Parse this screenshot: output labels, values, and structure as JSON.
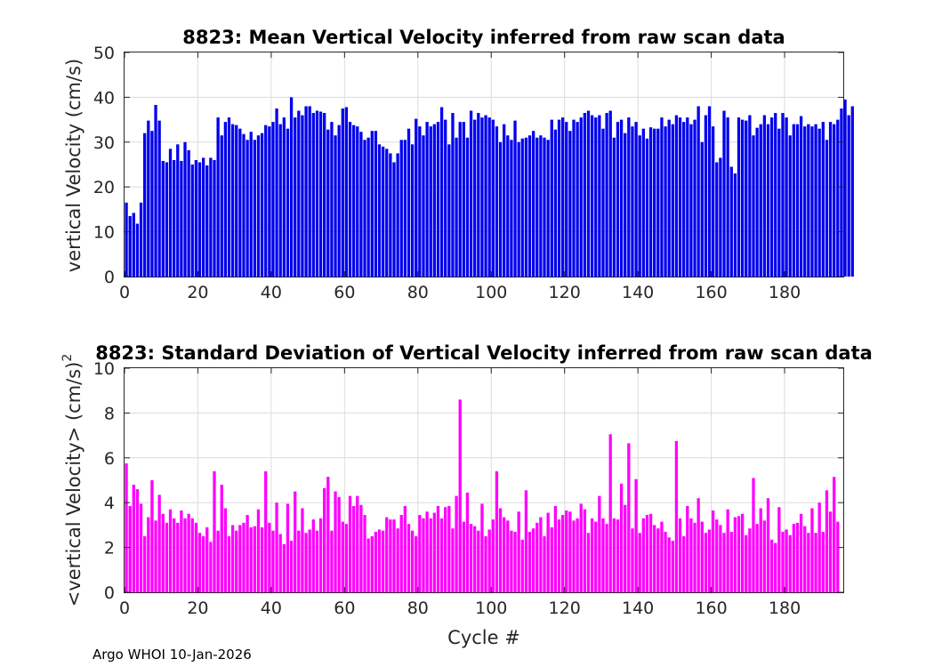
{
  "footer": "Argo WHOI 10-Jan-2026",
  "chart_data": [
    {
      "type": "bar",
      "title": "8823: Mean Vertical Velocity inferred from raw scan data",
      "xlabel": "",
      "ylabel": "vertical Velocity (cm/s)",
      "xlim": [
        0,
        196
      ],
      "ylim": [
        0,
        50
      ],
      "xticks": [
        0,
        20,
        40,
        60,
        80,
        100,
        120,
        140,
        160,
        180
      ],
      "yticks": [
        0,
        10,
        20,
        30,
        40,
        50
      ],
      "grid": true,
      "color": "#0000ee",
      "x_start": 0,
      "values": [
        16.5,
        13.5,
        14.2,
        11.8,
        16.5,
        32.0,
        34.8,
        32.5,
        38.3,
        34.8,
        25.8,
        25.5,
        28.5,
        26.0,
        29.5,
        25.8,
        30.0,
        28.2,
        25.0,
        26.0,
        25.5,
        26.5,
        24.8,
        26.5,
        26.0,
        35.5,
        31.5,
        34.5,
        35.5,
        34.0,
        33.8,
        33.0,
        31.8,
        30.5,
        32.3,
        30.5,
        31.5,
        32.0,
        33.8,
        33.5,
        34.5,
        37.5,
        34.0,
        35.5,
        33.0,
        40.0,
        35.5,
        37.0,
        36.0,
        38.0,
        38.0,
        36.5,
        37.0,
        36.8,
        36.5,
        32.8,
        34.5,
        31.5,
        33.8,
        37.5,
        37.8,
        34.5,
        33.8,
        33.5,
        32.3,
        30.5,
        31.0,
        32.5,
        32.5,
        29.5,
        29.0,
        28.5,
        27.5,
        25.5,
        27.5,
        30.5,
        30.5,
        33.0,
        29.5,
        35.2,
        33.5,
        31.5,
        34.5,
        33.5,
        34.0,
        34.5,
        37.8,
        35.0,
        29.5,
        36.5,
        31.0,
        34.5,
        34.5,
        31.0,
        37.0,
        35.0,
        36.5,
        35.5,
        36.0,
        35.5,
        35.0,
        33.5,
        30.0,
        34.0,
        31.5,
        30.5,
        34.8,
        30.0,
        30.8,
        31.0,
        31.5,
        32.5,
        31.0,
        31.5,
        31.0,
        30.5,
        35.0,
        32.8,
        35.0,
        35.5,
        34.5,
        32.5,
        35.0,
        34.5,
        35.5,
        36.5,
        37.0,
        36.0,
        35.5,
        36.0,
        33.0,
        36.5,
        37.0,
        31.0,
        34.5,
        35.0,
        32.0,
        35.5,
        33.5,
        34.5,
        31.5,
        33.0,
        30.8,
        33.3,
        33.0,
        33.0,
        35.5,
        33.5,
        35.0,
        34.0,
        36.0,
        35.5,
        34.5,
        35.5,
        34.0,
        35.0,
        38.0,
        30.0,
        36.0,
        38.0,
        33.5,
        25.5,
        26.5,
        37.0,
        35.5,
        24.5,
        23.0,
        35.5,
        35.0,
        34.8,
        36.0,
        31.5,
        33.2,
        34.0,
        36.0,
        34.0,
        35.5,
        36.5,
        33.0,
        36.5,
        35.5,
        31.5,
        34.0,
        34.0,
        35.8,
        33.5,
        34.0,
        33.5,
        34.0,
        33.0,
        34.5,
        30.5,
        34.5,
        34.0,
        35.0,
        37.5,
        39.5,
        36.0,
        38.0
      ]
    },
    {
      "type": "bar",
      "title": "8823: Standard Deviation of Vertical Velocity inferred from raw scan data",
      "xlabel": "Cycle #",
      "ylabel": "<vertical Velocity> (cm/s)",
      "ylabel_superscript": "2",
      "xlim": [
        0,
        196
      ],
      "ylim": [
        0,
        10
      ],
      "xticks": [
        0,
        20,
        40,
        60,
        80,
        100,
        120,
        140,
        160,
        180
      ],
      "yticks": [
        0,
        2,
        4,
        6,
        8,
        10
      ],
      "grid": true,
      "color": "#ff00ff",
      "x_start": 0,
      "values": [
        5.75,
        3.85,
        4.8,
        4.6,
        3.95,
        2.5,
        3.35,
        5.0,
        3.2,
        4.35,
        3.5,
        3.1,
        3.7,
        3.3,
        3.1,
        3.65,
        3.3,
        3.5,
        3.3,
        3.1,
        2.65,
        2.5,
        2.9,
        2.25,
        5.4,
        2.75,
        4.8,
        3.75,
        2.5,
        3.0,
        2.75,
        3.0,
        3.1,
        3.45,
        2.9,
        2.95,
        3.7,
        2.9,
        5.4,
        3.1,
        2.75,
        4.0,
        2.6,
        2.15,
        3.95,
        2.3,
        4.5,
        2.75,
        3.75,
        2.65,
        2.8,
        3.25,
        2.75,
        3.3,
        4.65,
        5.15,
        2.75,
        4.5,
        4.25,
        3.15,
        3.05,
        4.3,
        3.85,
        4.3,
        3.9,
        3.45,
        2.4,
        2.5,
        2.7,
        2.8,
        2.75,
        3.35,
        3.25,
        3.25,
        2.85,
        3.45,
        3.85,
        3.05,
        2.75,
        2.5,
        3.45,
        3.3,
        3.6,
        3.3,
        3.55,
        3.85,
        3.3,
        3.8,
        3.85,
        2.85,
        4.3,
        8.6,
        3.15,
        4.45,
        3.05,
        2.95,
        2.75,
        3.95,
        2.5,
        2.8,
        3.25,
        5.4,
        3.75,
        3.35,
        3.2,
        2.75,
        2.7,
        3.6,
        2.35,
        4.55,
        2.7,
        2.85,
        3.1,
        3.35,
        2.5,
        3.55,
        2.9,
        3.85,
        3.25,
        3.45,
        3.65,
        3.6,
        3.2,
        3.3,
        3.95,
        3.7,
        2.65,
        3.3,
        3.15,
        4.3,
        3.3,
        3.05,
        7.05,
        3.3,
        3.25,
        4.85,
        3.9,
        6.65,
        2.85,
        5.05,
        2.65,
        3.3,
        3.45,
        3.5,
        3.0,
        2.85,
        3.15,
        2.7,
        2.45,
        2.3,
        6.75,
        3.3,
        2.5,
        3.85,
        3.3,
        3.1,
        4.2,
        3.15,
        2.65,
        2.8,
        3.65,
        3.25,
        3.0,
        2.65,
        3.7,
        2.7,
        3.35,
        3.4,
        3.5,
        2.55,
        2.85,
        5.1,
        3.05,
        3.75,
        3.2,
        4.2,
        2.35,
        2.2,
        3.8,
        2.7,
        2.8,
        2.55,
        3.05,
        3.1,
        3.5,
        2.95,
        2.65,
        3.75,
        2.65,
        4.0,
        2.7,
        4.55,
        3.6,
        5.15,
        3.15
      ]
    }
  ]
}
